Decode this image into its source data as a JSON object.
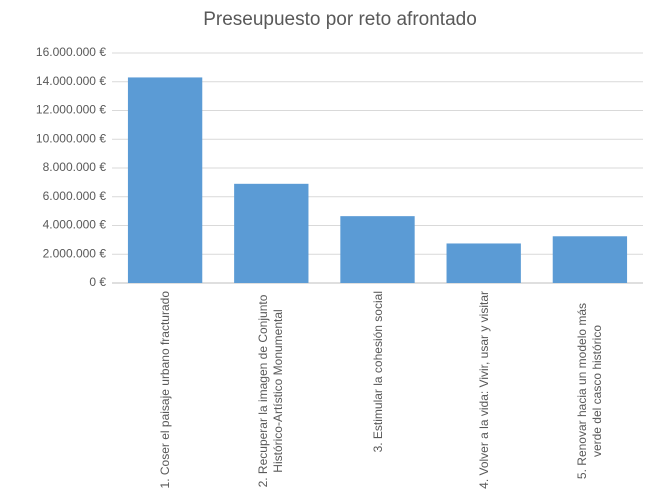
{
  "chart_data": {
    "type": "bar",
    "title": "Preseupuesto por reto afrontado",
    "categories": [
      "1. Coser el paisaje urbano fracturado",
      "2. Recuperar la imagen de Conjunto Histórico-Artístico Monumental",
      "3. Estimular la cohesión social",
      "4. Volver a la vida: Vivir, usar y visitar",
      "5. Renovar hacia un modelo más verde del casco histórico"
    ],
    "values": [
      14300000,
      6900000,
      4650000,
      2750000,
      3250000
    ],
    "color": "#5b9bd5",
    "ylim": [
      0,
      16000000
    ],
    "yticks": [
      {
        "value": 0,
        "label": "0 €"
      },
      {
        "value": 2000000,
        "label": "2.000.000 €"
      },
      {
        "value": 4000000,
        "label": "4.000.000 €"
      },
      {
        "value": 6000000,
        "label": "6.000.000 €"
      },
      {
        "value": 8000000,
        "label": "8.000.000 €"
      },
      {
        "value": 10000000,
        "label": "10.000.000 €"
      },
      {
        "value": 12000000,
        "label": "12.000.000 €"
      },
      {
        "value": 14000000,
        "label": "14.000.000 €"
      },
      {
        "value": 16000000,
        "label": "16.000.000 €"
      }
    ],
    "grid": true
  }
}
